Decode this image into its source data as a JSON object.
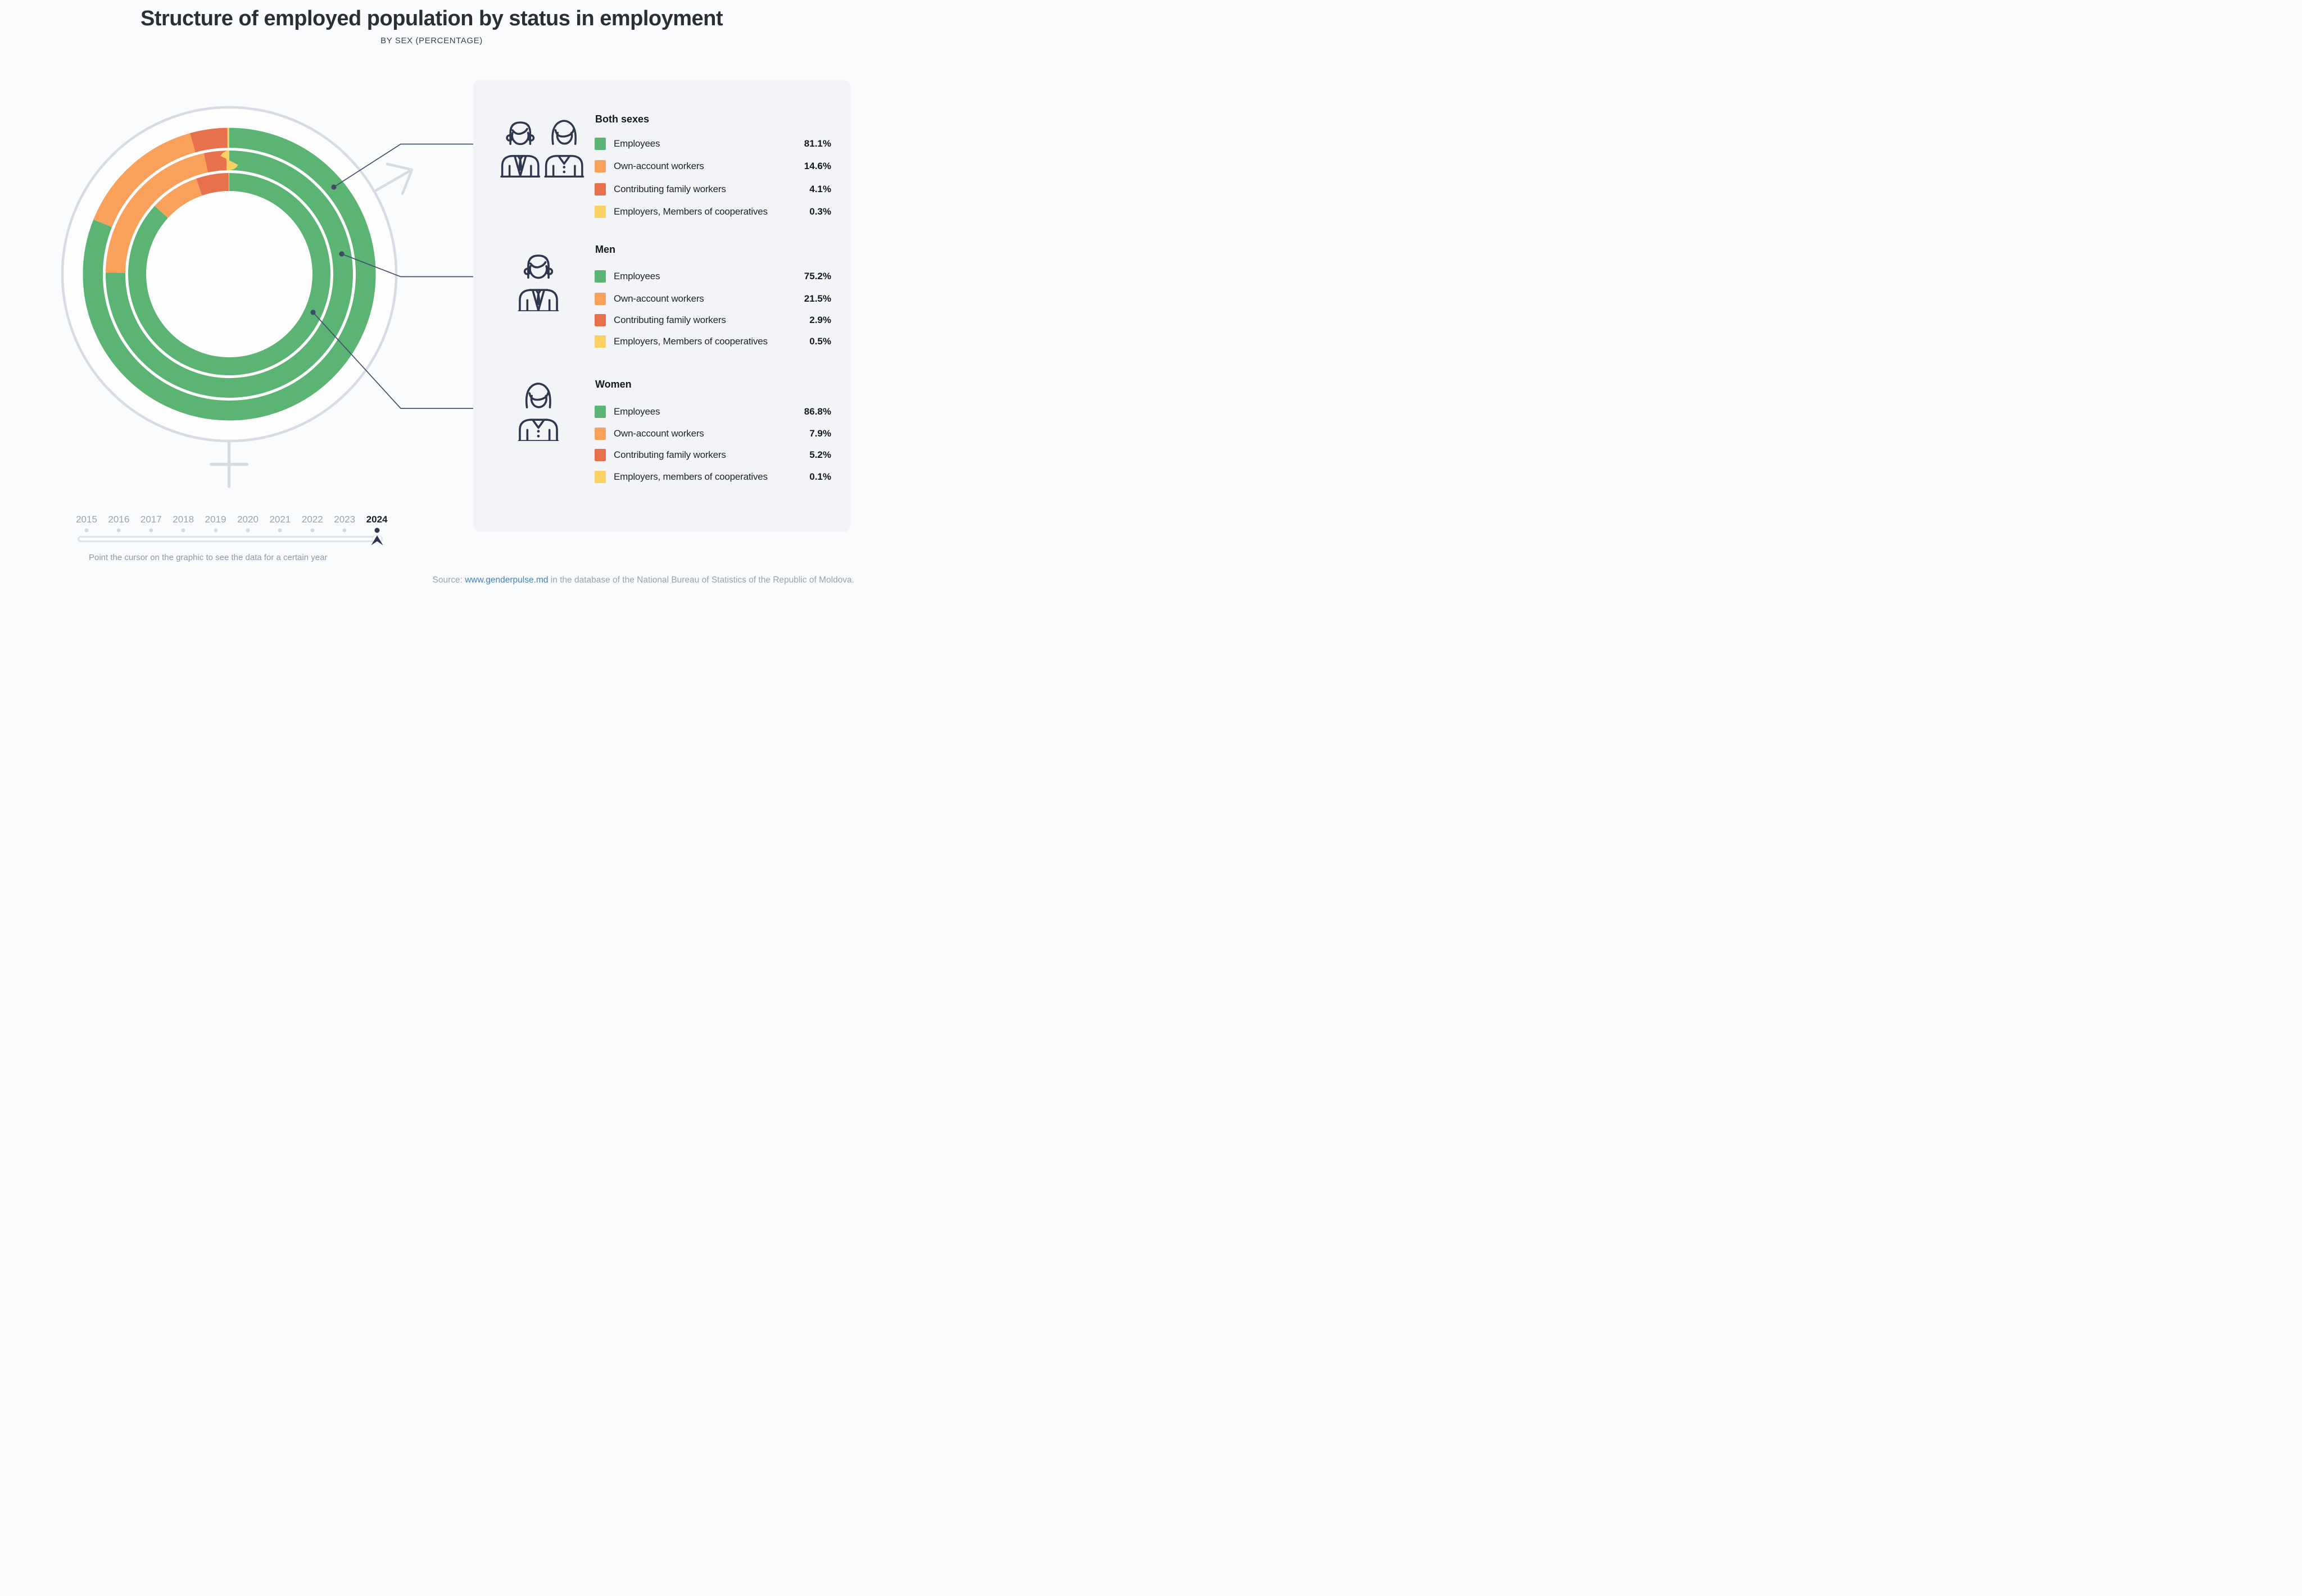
{
  "header": {
    "title": "Structure of employed population by status in employment",
    "subtitle": "BY SEX (PERCENTAGE)"
  },
  "chart_data": {
    "type": "donut",
    "title": "Structure of employed population by status in employment",
    "subtitle": "BY SEX (PERCENTAGE)",
    "unit": "%",
    "direction": "clockwise",
    "start_angle_deg": 0,
    "categories": [
      "Employees",
      "Own-account workers",
      "Contributing family workers",
      "Employers, Members of cooperatives"
    ],
    "category_keys": [
      "employees",
      "own_account",
      "family",
      "employers"
    ],
    "colors": {
      "employees": "#5BB374",
      "own_account": "#F9A05A",
      "family": "#E7704D",
      "employers": "#FBD164"
    },
    "rings": [
      {
        "name": "Both sexes",
        "position": "outer",
        "values": [
          81.1,
          14.6,
          4.1,
          0.3
        ]
      },
      {
        "name": "Men",
        "position": "middle",
        "values": [
          75.2,
          21.5,
          2.9,
          0.5
        ]
      },
      {
        "name": "Women",
        "position": "inner",
        "values": [
          86.8,
          7.9,
          5.2,
          0.1
        ]
      }
    ]
  },
  "panel": {
    "groups": [
      {
        "header": "Both sexes",
        "icon": "man-and-woman",
        "rows": [
          {
            "label": "Employees",
            "value": "81.1%",
            "key": "employees"
          },
          {
            "label": "Own-account workers",
            "value": "14.6%",
            "key": "own_account"
          },
          {
            "label": "Contributing family workers",
            "value": "4.1%",
            "key": "family"
          },
          {
            "label": "Employers, Members of cooperatives",
            "value": "0.3%",
            "key": "employers"
          }
        ]
      },
      {
        "header": "Men",
        "icon": "man",
        "rows": [
          {
            "label": "Employees",
            "value": "75.2%",
            "key": "employees"
          },
          {
            "label": "Own-account workers",
            "value": "21.5%",
            "key": "own_account"
          },
          {
            "label": "Contributing family workers",
            "value": "2.9%",
            "key": "family"
          },
          {
            "label": "Employers, Members of cooperatives",
            "value": "0.5%",
            "key": "employers"
          }
        ]
      },
      {
        "header": "Women",
        "icon": "woman",
        "rows": [
          {
            "label": "Employees",
            "value": "86.8%",
            "key": "employees"
          },
          {
            "label": "Own-account workers",
            "value": "7.9%",
            "key": "own_account"
          },
          {
            "label": "Contributing family workers",
            "value": "5.2%",
            "key": "family"
          },
          {
            "label": "Employers, members of cooperatives",
            "value": "0.1%",
            "key": "employers"
          }
        ]
      }
    ]
  },
  "slider": {
    "years": [
      "2015",
      "2016",
      "2017",
      "2018",
      "2019",
      "2020",
      "2021",
      "2022",
      "2023",
      "2024"
    ],
    "selected_year": "2024",
    "hint": "Point the cursor on the graphic to see the data for a certain year"
  },
  "footer": {
    "source_prefix": "Source: ",
    "source_link": "www.genderpulse.md",
    "source_suffix": " in the database of the National Bureau of Statistics of the Republic of Moldova."
  }
}
